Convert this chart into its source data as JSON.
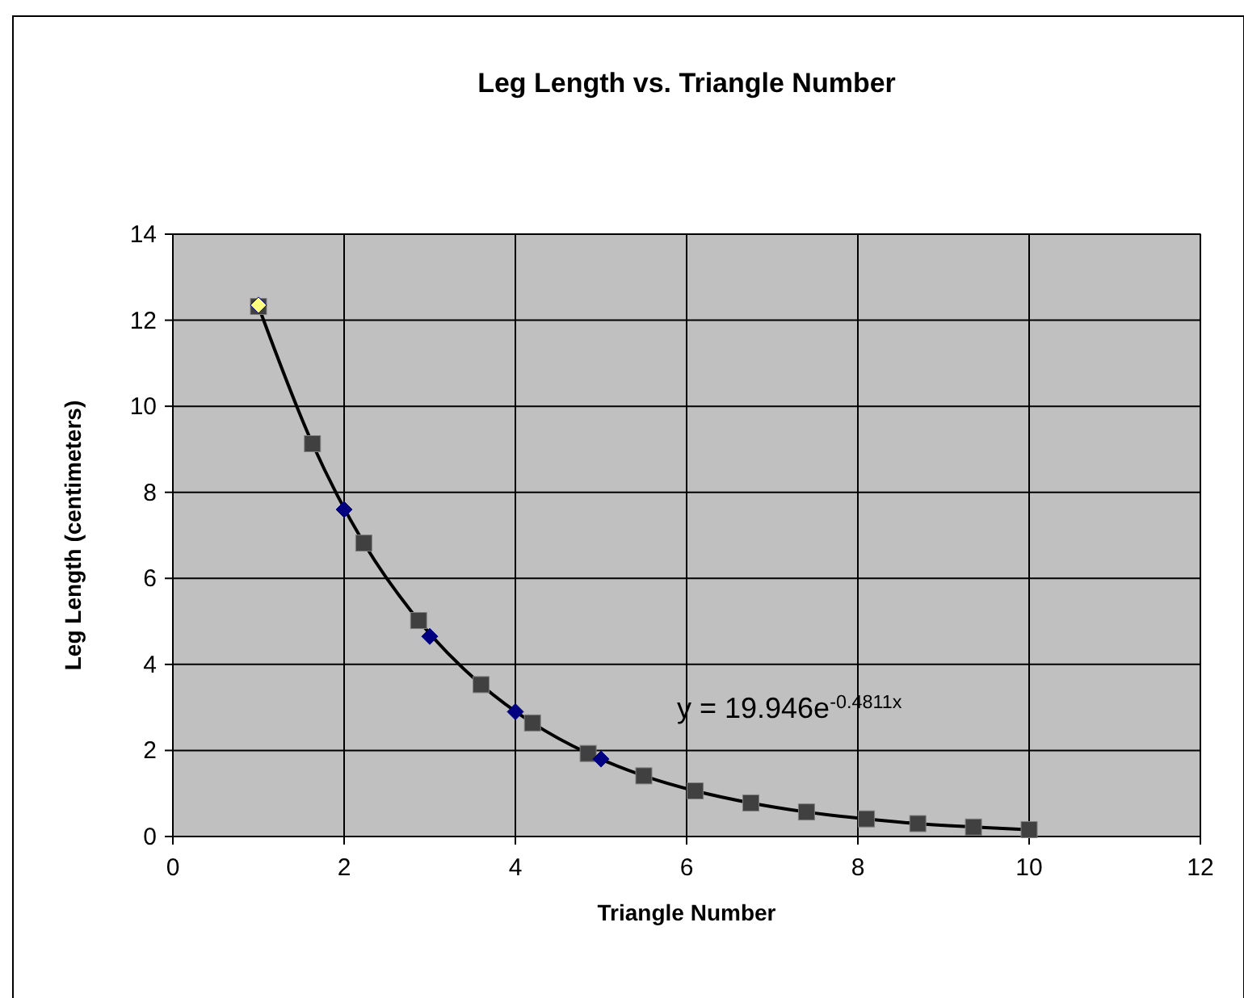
{
  "chart_data": {
    "type": "scatter",
    "title": "Leg Length vs. Triangle Number",
    "xlabel": "Triangle Number",
    "ylabel": "Leg Length (centimeters)",
    "xlim": [
      0,
      12
    ],
    "xticks": [
      0,
      2,
      4,
      6,
      8,
      10,
      12
    ],
    "ylim": [
      0,
      14
    ],
    "yticks": [
      0,
      2,
      4,
      6,
      8,
      10,
      12,
      14
    ],
    "grid": true,
    "annotations": [
      "y = 19.946e$^{-0.4811x}$"
    ],
    "series": [
      {
        "type": "line",
        "color": "#000000",
        "marker": "square",
        "line_style": "solid",
        "x": [
          1,
          1.63,
          2.23,
          2.87,
          3.6,
          4.2,
          4.85,
          5.5,
          6.1,
          6.75,
          7.4,
          8.1,
          8.7,
          9.35,
          10
        ],
        "values": [
          12.32,
          9.13,
          6.82,
          5.02,
          3.53,
          2.64,
          1.93,
          1.41,
          1.06,
          0.78,
          0.57,
          0.41,
          0.3,
          0.22,
          0.16
        ]
      },
      {
        "type": "scatter",
        "color": "#000080",
        "colors": [
          "#ffff80",
          "#000080",
          "#000080",
          "#000080",
          "#000080"
        ],
        "marker": "diamond",
        "x": [
          1,
          2,
          3,
          4,
          5
        ],
        "values": [
          12.35,
          7.6,
          4.65,
          2.9,
          1.8
        ]
      }
    ]
  }
}
